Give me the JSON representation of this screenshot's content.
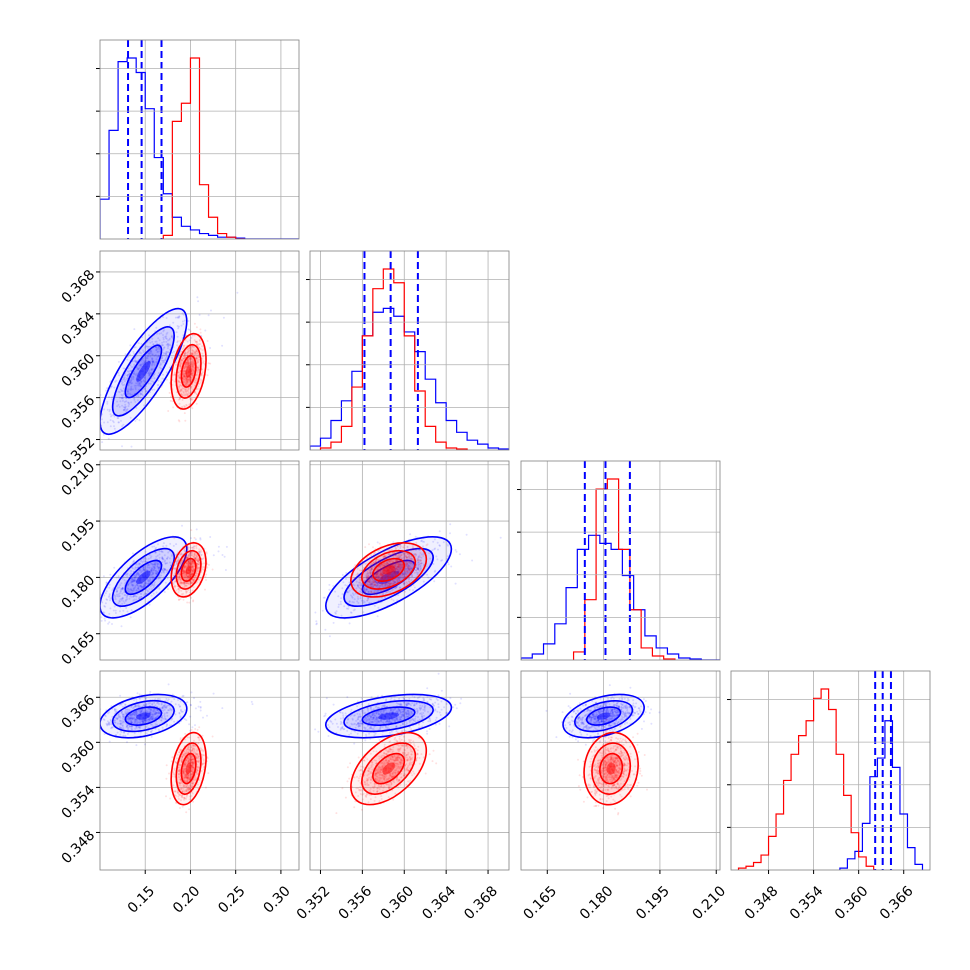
{
  "chart_data": {
    "type": "corner",
    "colors": {
      "series_a": "#0000ff",
      "series_b": "#ff0000"
    },
    "parameters": [
      {
        "range": [
          0.1,
          0.32
        ],
        "ticks": [
          0.15,
          0.2,
          0.25,
          0.3
        ],
        "tick_labels": [
          "0.15",
          "0.20",
          "0.25",
          "0.30"
        ]
      },
      {
        "range": [
          0.351,
          0.37
        ],
        "ticks": [
          0.352,
          0.356,
          0.36,
          0.364,
          0.368
        ],
        "tick_labels": [
          "0.352",
          "0.356",
          "0.360",
          "0.364",
          "0.368"
        ]
      },
      {
        "range": [
          0.158,
          0.211
        ],
        "ticks": [
          0.165,
          0.18,
          0.195,
          0.21
        ],
        "tick_labels": [
          "0.165",
          "0.180",
          "0.195",
          "0.210"
        ]
      },
      {
        "range": [
          0.343,
          0.3695
        ],
        "ticks": [
          0.348,
          0.354,
          0.36,
          0.366
        ],
        "tick_labels": [
          "0.348",
          "0.354",
          "0.360",
          "0.366"
        ]
      }
    ],
    "series": [
      {
        "color": "#0000ff",
        "means": [
          0.148,
          0.3585,
          0.18,
          0.3635
        ],
        "sds": [
          0.02,
          0.0025,
          0.0045,
          0.0012
        ],
        "histograms": [
          {
            "bin_edges": [
              0.1,
              0.11,
              0.12,
              0.13,
              0.14,
              0.15,
              0.16,
              0.17,
              0.18,
              0.19,
              0.2,
              0.21,
              0.22,
              0.23,
              0.24,
              0.25,
              0.26,
              0.27,
              0.28,
              0.29,
              0.3,
              0.31,
              0.32
            ],
            "counts": [
              0.22,
              0.6,
              0.98,
              1.0,
              0.92,
              0.72,
              0.45,
              0.25,
              0.12,
              0.07,
              0.05,
              0.03,
              0.02,
              0.01,
              0.01,
              0.005,
              0,
              0,
              0,
              0,
              0,
              0
            ]
          },
          {
            "bin_edges": [
              0.351,
              0.352,
              0.353,
              0.354,
              0.355,
              0.356,
              0.357,
              0.358,
              0.359,
              0.36,
              0.361,
              0.362,
              0.363,
              0.364,
              0.365,
              0.366,
              0.367,
              0.368,
              0.369,
              0.37
            ],
            "counts": [
              0.02,
              0.06,
              0.15,
              0.25,
              0.4,
              0.58,
              0.7,
              0.72,
              0.68,
              0.6,
              0.5,
              0.36,
              0.24,
              0.15,
              0.09,
              0.05,
              0.03,
              0.01,
              0.005
            ]
          },
          {
            "bin_edges": [
              0.158,
              0.161,
              0.164,
              0.167,
              0.17,
              0.173,
              0.176,
              0.179,
              0.182,
              0.185,
              0.188,
              0.191,
              0.194,
              0.197,
              0.2,
              0.203,
              0.206,
              0.209,
              0.211
            ],
            "counts": [
              0.01,
              0.03,
              0.08,
              0.18,
              0.36,
              0.55,
              0.62,
              0.58,
              0.55,
              0.42,
              0.25,
              0.12,
              0.06,
              0.03,
              0.01,
              0.005,
              0,
              0
            ]
          },
          {
            "bin_edges": [
              0.3575,
              0.3585,
              0.3595,
              0.3605,
              0.3615,
              0.3625,
              0.3635,
              0.3645,
              0.3655,
              0.3665,
              0.3675,
              0.3685
            ],
            "counts": [
              0.01,
              0.06,
              0.1,
              0.25,
              0.5,
              0.6,
              0.8,
              0.55,
              0.3,
              0.12,
              0.03
            ]
          }
        ]
      },
      {
        "color": "#ff0000",
        "means": [
          0.198,
          0.3585,
          0.182,
          0.3565
        ],
        "sds": [
          0.008,
          0.0015,
          0.003,
          0.002
        ],
        "histograms": [
          {
            "bin_edges": [
              0.17,
              0.18,
              0.19,
              0.2,
              0.21,
              0.22,
              0.23,
              0.24,
              0.25,
              0.26
            ],
            "counts": [
              0.02,
              0.65,
              0.75,
              1.0,
              0.3,
              0.12,
              0.03,
              0.01,
              0
            ]
          },
          {
            "bin_edges": [
              0.352,
              0.353,
              0.354,
              0.355,
              0.356,
              0.357,
              0.358,
              0.359,
              0.36,
              0.361,
              0.362,
              0.363,
              0.364,
              0.365,
              0.366
            ],
            "counts": [
              0.01,
              0.04,
              0.12,
              0.32,
              0.58,
              0.82,
              0.92,
              0.85,
              0.58,
              0.3,
              0.12,
              0.04,
              0.01,
              0.005
            ]
          },
          {
            "bin_edges": [
              0.172,
              0.175,
              0.178,
              0.181,
              0.184,
              0.187,
              0.19,
              0.193,
              0.196,
              0.199
            ],
            "counts": [
              0.04,
              0.3,
              0.85,
              0.9,
              0.55,
              0.25,
              0.06,
              0.02,
              0.005
            ]
          },
          {
            "bin_edges": [
              0.344,
              0.345,
              0.346,
              0.347,
              0.348,
              0.349,
              0.35,
              0.351,
              0.352,
              0.353,
              0.354,
              0.355,
              0.356,
              0.357,
              0.358,
              0.359,
              0.36,
              0.361,
              0.362
            ],
            "counts": [
              0.01,
              0.02,
              0.04,
              0.08,
              0.18,
              0.3,
              0.48,
              0.62,
              0.72,
              0.8,
              0.92,
              0.97,
              0.86,
              0.62,
              0.4,
              0.2,
              0.07,
              0.02
            ]
          }
        ]
      }
    ],
    "quantile_lines": {
      "color": "#0000ff",
      "values": [
        [
          0.131,
          0.146,
          0.168
        ],
        [
          0.3562,
          0.3587,
          0.3613
        ],
        [
          0.175,
          0.1805,
          0.187
        ],
        [
          0.3622,
          0.3632,
          0.3643
        ]
      ]
    },
    "correlations": {
      "series_a": [
        [
          0,
          1,
          0.8
        ],
        [
          0,
          2,
          0.7
        ],
        [
          1,
          2,
          0.7
        ],
        [
          0,
          3,
          0.35
        ],
        [
          1,
          3,
          0.4
        ],
        [
          2,
          3,
          0.4
        ]
      ],
      "series_b": [
        [
          0,
          1,
          0.3
        ],
        [
          0,
          2,
          0.3
        ],
        [
          1,
          2,
          0.4
        ],
        [
          0,
          3,
          0.3
        ],
        [
          1,
          3,
          0.5
        ],
        [
          2,
          3,
          0.1
        ]
      ]
    }
  }
}
